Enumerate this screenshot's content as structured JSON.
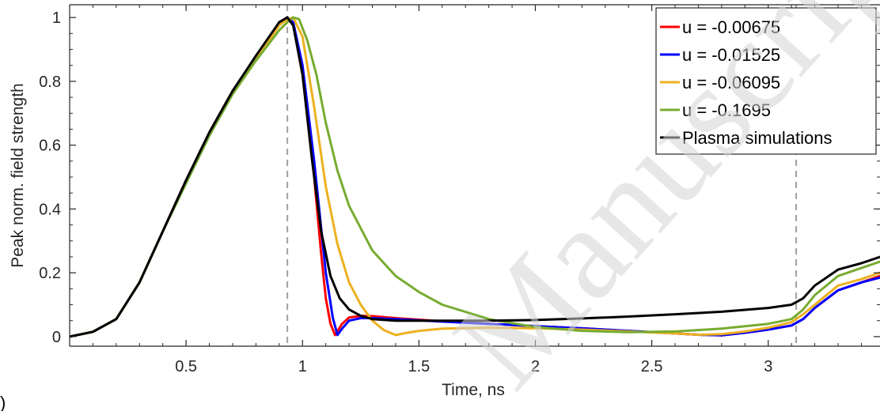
{
  "corner_mark": ")",
  "watermark_text": "Manuscript",
  "chart_data": {
    "type": "line",
    "title": "",
    "xlabel": "Time, ns",
    "ylabel": "Peak norm. field strength",
    "xlim": [
      0,
      3.48
    ],
    "ylim": [
      -0.03,
      1.04
    ],
    "xticks": [
      0.5,
      1,
      1.5,
      2,
      2.5,
      3
    ],
    "xtick_labels": [
      "0.5",
      "1",
      "1.5",
      "2",
      "2.5",
      "3"
    ],
    "yticks": [
      0,
      0.2,
      0.4,
      0.6,
      0.8,
      1
    ],
    "ytick_labels": [
      "0",
      "0.2",
      "0.4",
      "0.6",
      "0.8",
      "1"
    ],
    "grid": false,
    "legend_position": "top-right",
    "vlines": [
      {
        "x": 0.935,
        "style": "dashed",
        "color": "#a0a0a0"
      },
      {
        "x": 3.12,
        "style": "dashed",
        "color": "#a0a0a0"
      }
    ],
    "series": [
      {
        "name": "u = -0.00675",
        "color": "#ff0000",
        "x": [
          0,
          0.1,
          0.2,
          0.3,
          0.4,
          0.5,
          0.6,
          0.7,
          0.8,
          0.9,
          0.935,
          0.96,
          1.0,
          1.05,
          1.08,
          1.1,
          1.12,
          1.14,
          1.17,
          1.2,
          1.25,
          1.3,
          1.4,
          1.6,
          1.8,
          2.0,
          2.2,
          2.4,
          2.6,
          2.7,
          2.8,
          2.9,
          3.0,
          3.1,
          3.15,
          3.2,
          3.3,
          3.4,
          3.48
        ],
        "y": [
          0,
          0.015,
          0.055,
          0.17,
          0.33,
          0.49,
          0.64,
          0.77,
          0.87,
          0.985,
          1.0,
          0.98,
          0.83,
          0.5,
          0.26,
          0.12,
          0.04,
          0.005,
          0.04,
          0.06,
          0.065,
          0.064,
          0.058,
          0.048,
          0.04,
          0.033,
          0.026,
          0.018,
          0.01,
          0.006,
          0.004,
          0.012,
          0.022,
          0.035,
          0.055,
          0.09,
          0.145,
          0.17,
          0.19
        ]
      },
      {
        "name": "u = -0.01525",
        "color": "#0000ff",
        "x": [
          0,
          0.1,
          0.2,
          0.3,
          0.4,
          0.5,
          0.6,
          0.7,
          0.8,
          0.9,
          0.935,
          0.96,
          1.0,
          1.05,
          1.1,
          1.13,
          1.15,
          1.17,
          1.2,
          1.25,
          1.3,
          1.4,
          1.6,
          1.8,
          2.0,
          2.2,
          2.4,
          2.6,
          2.7,
          2.8,
          2.9,
          3.0,
          3.1,
          3.15,
          3.2,
          3.3,
          3.4,
          3.48
        ],
        "y": [
          0,
          0.015,
          0.055,
          0.17,
          0.33,
          0.49,
          0.64,
          0.77,
          0.87,
          0.985,
          1.0,
          0.985,
          0.85,
          0.55,
          0.2,
          0.06,
          0.005,
          0.025,
          0.05,
          0.058,
          0.058,
          0.055,
          0.047,
          0.04,
          0.033,
          0.026,
          0.018,
          0.01,
          0.006,
          0.004,
          0.012,
          0.022,
          0.035,
          0.055,
          0.09,
          0.145,
          0.17,
          0.185
        ]
      },
      {
        "name": "u = -0.06095",
        "color": "#edb120",
        "x": [
          0,
          0.1,
          0.2,
          0.3,
          0.4,
          0.5,
          0.6,
          0.7,
          0.8,
          0.9,
          0.935,
          0.96,
          1.0,
          1.05,
          1.1,
          1.15,
          1.2,
          1.25,
          1.3,
          1.35,
          1.4,
          1.45,
          1.5,
          1.6,
          1.8,
          2.0,
          2.2,
          2.4,
          2.6,
          2.7,
          2.8,
          2.9,
          3.0,
          3.1,
          3.15,
          3.2,
          3.3,
          3.4,
          3.48
        ],
        "y": [
          0,
          0.015,
          0.055,
          0.17,
          0.33,
          0.49,
          0.64,
          0.77,
          0.87,
          0.975,
          0.995,
          1.0,
          0.94,
          0.72,
          0.47,
          0.29,
          0.17,
          0.1,
          0.05,
          0.02,
          0.005,
          0.012,
          0.018,
          0.025,
          0.028,
          0.026,
          0.022,
          0.016,
          0.01,
          0.006,
          0.008,
          0.016,
          0.028,
          0.045,
          0.07,
          0.1,
          0.16,
          0.18,
          0.2
        ]
      },
      {
        "name": "u = -0.1695",
        "color": "#77ac30",
        "x": [
          0,
          0.1,
          0.2,
          0.3,
          0.4,
          0.5,
          0.6,
          0.7,
          0.8,
          0.9,
          0.935,
          0.96,
          0.985,
          1.02,
          1.06,
          1.1,
          1.15,
          1.2,
          1.3,
          1.4,
          1.5,
          1.6,
          1.8,
          2.0,
          2.2,
          2.4,
          2.6,
          2.8,
          3.0,
          3.1,
          3.15,
          3.2,
          3.3,
          3.4,
          3.48
        ],
        "y": [
          0,
          0.015,
          0.055,
          0.17,
          0.33,
          0.48,
          0.63,
          0.76,
          0.865,
          0.96,
          0.985,
          1.0,
          0.995,
          0.93,
          0.82,
          0.67,
          0.52,
          0.41,
          0.27,
          0.19,
          0.14,
          0.1,
          0.055,
          0.03,
          0.018,
          0.014,
          0.016,
          0.025,
          0.04,
          0.055,
          0.085,
          0.13,
          0.19,
          0.215,
          0.235
        ]
      },
      {
        "name": "Plasma simulations",
        "color": "#000000",
        "x": [
          0,
          0.1,
          0.2,
          0.3,
          0.4,
          0.5,
          0.6,
          0.7,
          0.8,
          0.9,
          0.935,
          0.96,
          1.0,
          1.04,
          1.08,
          1.12,
          1.16,
          1.2,
          1.25,
          1.3,
          1.4,
          1.6,
          1.8,
          2.0,
          2.2,
          2.4,
          2.6,
          2.8,
          3.0,
          3.1,
          3.15,
          3.2,
          3.3,
          3.4,
          3.48
        ],
        "y": [
          0,
          0.015,
          0.055,
          0.17,
          0.33,
          0.49,
          0.64,
          0.77,
          0.88,
          0.985,
          1.0,
          0.975,
          0.82,
          0.56,
          0.33,
          0.19,
          0.12,
          0.085,
          0.065,
          0.055,
          0.05,
          0.05,
          0.05,
          0.052,
          0.057,
          0.063,
          0.07,
          0.078,
          0.09,
          0.1,
          0.12,
          0.16,
          0.21,
          0.23,
          0.25
        ]
      }
    ]
  }
}
